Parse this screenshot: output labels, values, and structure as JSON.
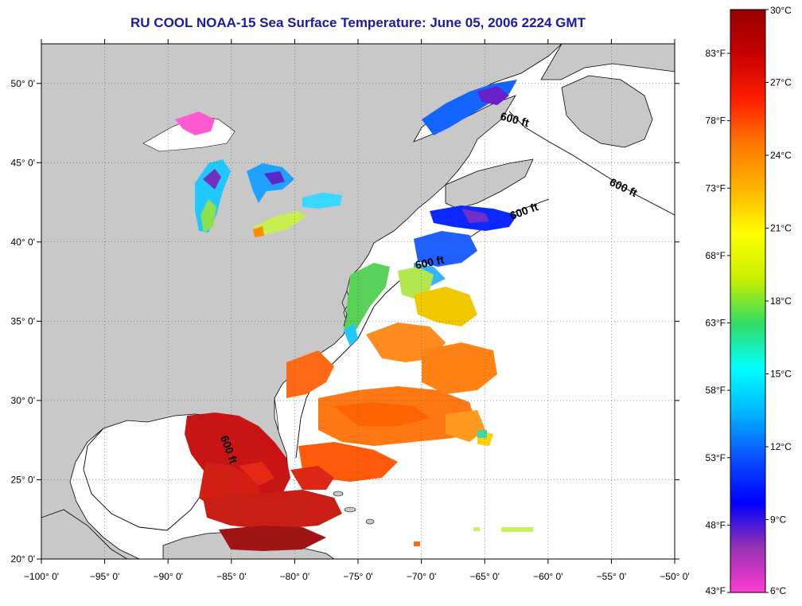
{
  "title": "RU COOL  NOAA-15  Sea Surface Temperature:  June 05, 2006 2224 GMT",
  "colors": {
    "land": "#c8c8c8",
    "no_data": "#ffffff",
    "title": "#1a1aa6",
    "coastline": "#000000"
  },
  "map": {
    "lon_range": [
      -100,
      -50
    ],
    "lat_range": [
      20,
      52.5
    ],
    "lon_ticks": [
      "−100° 0'",
      "−95° 0'",
      "−90° 0'",
      "−85° 0'",
      "−80° 0'",
      "−75° 0'",
      "−70° 0'",
      "−65° 0'",
      "−60° 0'",
      "−55° 0'",
      "−50° 0'"
    ],
    "lat_ticks": [
      "20° 0'",
      "25° 0'",
      "30° 0'",
      "35° 0'",
      "40° 0'",
      "45° 0'",
      "50° 0'"
    ],
    "isobath_labels": [
      "600 ft",
      "600 ft",
      "600 ft",
      "600 ft",
      "600 ft"
    ]
  },
  "colorbar": {
    "celsius": [
      "30°C",
      "27°C",
      "24°C",
      "21°C",
      "18°C",
      "15°C",
      "12°C",
      "9°C",
      "6°C"
    ],
    "fahrenheit": [
      "83°F",
      "78°F",
      "73°F",
      "68°F",
      "63°F",
      "58°F",
      "53°F",
      "48°F",
      "43°F"
    ],
    "stops": [
      "#ff3cd2",
      "#9632b4",
      "#0000ff",
      "#0a50ff",
      "#00b4ff",
      "#00ffff",
      "#32dc64",
      "#c8f000",
      "#ffff00",
      "#ffb400",
      "#ff7800",
      "#ff1e00",
      "#c80000",
      "#960000"
    ]
  }
}
